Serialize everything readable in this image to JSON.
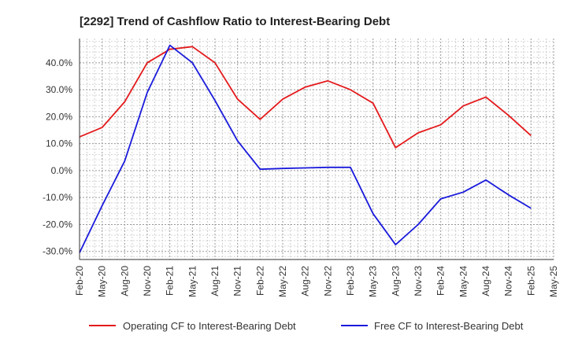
{
  "chart_data": {
    "type": "line",
    "title": "[2292]  Trend of Cashflow Ratio to Interest-Bearing Debt",
    "xlabel": "",
    "ylabel": "",
    "x_ticks": [
      "Feb-20",
      "May-20",
      "Aug-20",
      "Nov-20",
      "Feb-21",
      "May-21",
      "Aug-21",
      "Nov-21",
      "Feb-22",
      "May-22",
      "Aug-22",
      "Nov-22",
      "Feb-23",
      "May-23",
      "Aug-23",
      "Nov-23",
      "Feb-24",
      "May-24",
      "Aug-24",
      "Nov-24",
      "Feb-25",
      "May-25"
    ],
    "y_ticks": [
      40,
      30,
      20,
      10,
      0,
      -10,
      -20,
      -30
    ],
    "y_tick_labels": [
      "40.0%",
      "30.0%",
      "20.0%",
      "10.0%",
      "0.0%",
      "-10.0%",
      "-20.0%",
      "-30.0%"
    ],
    "ylim": [
      -33,
      49
    ],
    "grid": true,
    "legend_position": "bottom",
    "series": [
      {
        "name": "Operating CF to Interest-Bearing Debt",
        "color": "#e41a1c",
        "x": [
          "Feb-20",
          "May-20",
          "Aug-20",
          "Nov-20",
          "Feb-21",
          "May-21",
          "Aug-21",
          "Nov-21",
          "Feb-22",
          "May-22",
          "Aug-22",
          "Nov-22",
          "Feb-23",
          "May-23",
          "Aug-23",
          "Nov-23",
          "Feb-24",
          "May-24",
          "Aug-24",
          "Nov-24",
          "Feb-25"
        ],
        "values": [
          12.5,
          16.0,
          25.5,
          40.0,
          45.0,
          46.0,
          40.0,
          26.5,
          19.0,
          26.5,
          31.0,
          33.3,
          30.0,
          25.0,
          8.5,
          14.0,
          17.0,
          24.0,
          27.3,
          20.5,
          13.0
        ]
      },
      {
        "name": "Free CF to Interest-Bearing Debt",
        "color": "#1a1adc",
        "x": [
          "Feb-20",
          "May-20",
          "Aug-20",
          "Nov-20",
          "Feb-21",
          "May-21",
          "Aug-21",
          "Nov-21",
          "Feb-22",
          "May-22",
          "Aug-22",
          "Nov-22",
          "Feb-23",
          "May-23",
          "Aug-23",
          "Nov-23",
          "Feb-24",
          "May-24",
          "Aug-24",
          "Nov-24",
          "Feb-25"
        ],
        "values": [
          -30.5,
          -13.0,
          3.5,
          29.0,
          46.5,
          40.0,
          26.0,
          11.0,
          0.5,
          0.8,
          1.0,
          1.2,
          1.2,
          -16.0,
          -27.5,
          -20.0,
          -10.5,
          -8.0,
          -3.5,
          -9.0,
          -14.0
        ]
      }
    ]
  }
}
